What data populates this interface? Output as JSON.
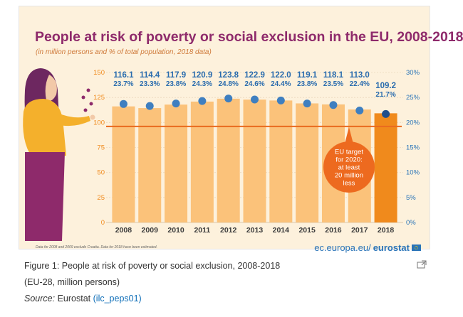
{
  "chart_data": {
    "type": "bar",
    "title": "People at risk of poverty or social exclusion in the EU, 2008-2018",
    "subtitle": "(in million persons and % of total population, 2018 data)",
    "categories": [
      "2008",
      "2009",
      "2010",
      "2011",
      "2012",
      "2013",
      "2014",
      "2015",
      "2016",
      "2017",
      "2018"
    ],
    "values": [
      116.1,
      114.4,
      117.9,
      120.9,
      123.8,
      122.9,
      122.0,
      119.1,
      118.1,
      113.0,
      109.2
    ],
    "value_labels": [
      "116.1",
      "114.4",
      "117.9",
      "120.9",
      "123.8",
      "122.9",
      "122.0",
      "119.1",
      "118.1",
      "113.0",
      "109.2"
    ],
    "percent": [
      23.7,
      23.3,
      23.8,
      24.3,
      24.8,
      24.6,
      24.4,
      23.8,
      23.5,
      22.4,
      21.7
    ],
    "percent_labels": [
      "23.7%",
      "23.3%",
      "23.8%",
      "24.3%",
      "24.8%",
      "24.6%",
      "24.4%",
      "23.8%",
      "23.5%",
      "22.4%",
      "21.7%"
    ],
    "y_left": {
      "min": 0,
      "max": 150,
      "ticks": [
        "0",
        "25",
        "50",
        "75",
        "100",
        "125",
        "150"
      ]
    },
    "y_right": {
      "min": 0,
      "max": 30,
      "ticks": [
        "0%",
        "5%",
        "10%",
        "15%",
        "20%",
        "25%",
        "30%"
      ]
    },
    "target_line_value": 96.1,
    "target_callout": [
      "EU target",
      "for 2020:",
      "at least",
      "20 million",
      "less"
    ],
    "highlighted_category": "2018",
    "colors": {
      "bar": "#fbc27a",
      "bar_highlight": "#f08a1c",
      "dot": "#3f7fc0",
      "dot_highlight": "#1f4e8c",
      "target_line": "#e96a1f",
      "title": "#8e2a6b",
      "value_text": "#2a6cae"
    }
  },
  "footnote": "Data for 2008 and 2009 exclude Croatia. Data for 2018 have been estimated.",
  "logo": {
    "prefix": "ec.europa.eu/",
    "brand": "eurostat"
  },
  "caption": {
    "line1": "Figure 1: People at risk of poverty or social exclusion, 2008-2018",
    "line2": "(EU-28, million persons)",
    "source_label": "Source:",
    "source_value": "Eurostat",
    "source_link": "(ilc_peps01)"
  }
}
